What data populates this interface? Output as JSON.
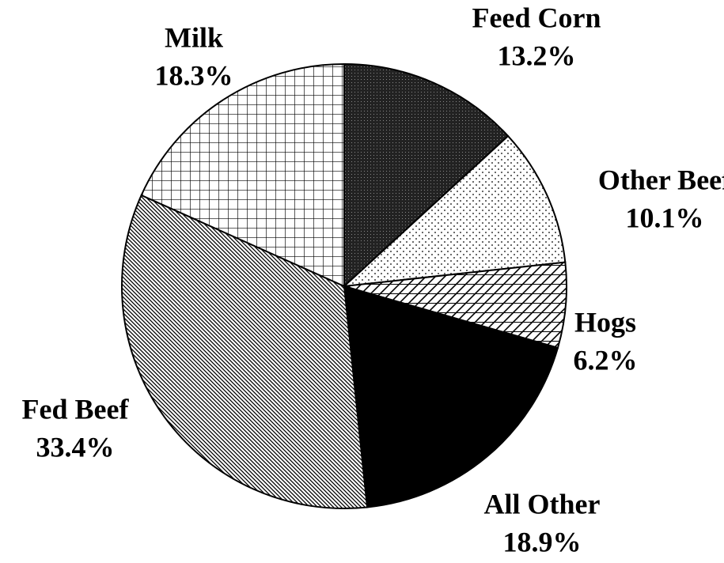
{
  "chart_data": {
    "type": "pie",
    "categories": [
      "Feed Corn",
      "Other Beef",
      "Hogs",
      "All Other",
      "Fed Beef",
      "Milk"
    ],
    "values": [
      13.2,
      10.1,
      6.2,
      18.9,
      33.4,
      18.3
    ],
    "value_labels": [
      "13.2%",
      "10.1%",
      "6.2%",
      "18.9%",
      "33.4%",
      "18.3%"
    ]
  }
}
